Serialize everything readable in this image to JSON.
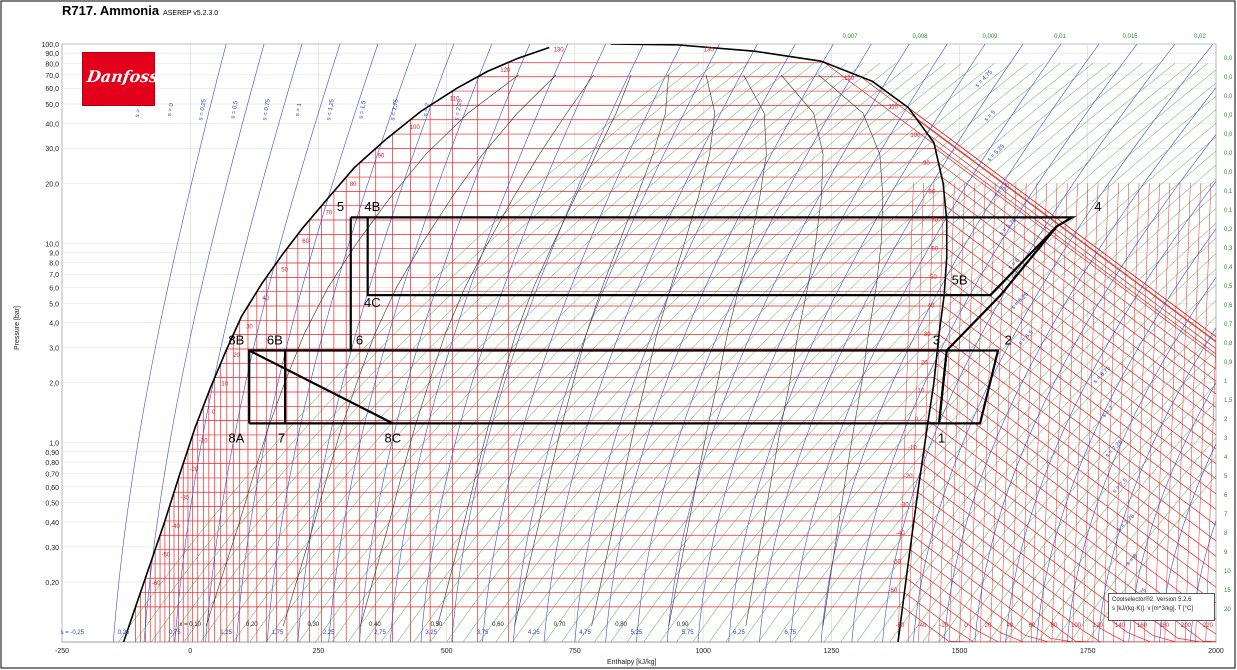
{
  "title": "R717. Ammonia",
  "version": "ASEREP v5.2.3.0",
  "logo_text": "Danfoss",
  "footer_box": {
    "line1": "Coolselector®2. Version 5.2.6",
    "line2": "s [kJ/(kg·K)]. v [m^3/kg]. T [°C]"
  },
  "chart_data": {
    "type": "line",
    "xlabel": "Enthalpy [kJ/kg]",
    "ylabel": "Pressure [bar]",
    "xlim": [
      -250,
      2000
    ],
    "ylim": [
      0.1,
      100
    ],
    "yscale": "log",
    "x_ticks": [
      -250,
      0,
      250,
      500,
      750,
      1000,
      1250,
      1500,
      1750,
      2000
    ],
    "y_ticks": [
      {
        "v": 100,
        "label": "100,0"
      },
      {
        "v": 90,
        "label": "90,0"
      },
      {
        "v": 80,
        "label": "80,0"
      },
      {
        "v": 70,
        "label": "70,0"
      },
      {
        "v": 60,
        "label": "60,0"
      },
      {
        "v": 50,
        "label": "50,0"
      },
      {
        "v": 40,
        "label": "40,0"
      },
      {
        "v": 30,
        "label": "30,0"
      },
      {
        "v": 20,
        "label": "20,0"
      },
      {
        "v": 10,
        "label": "10,0"
      },
      {
        "v": 9,
        "label": "9,0"
      },
      {
        "v": 8,
        "label": "8,0"
      },
      {
        "v": 7,
        "label": "7,0"
      },
      {
        "v": 6,
        "label": "6,0"
      },
      {
        "v": 5,
        "label": "5,0"
      },
      {
        "v": 4,
        "label": "4,0"
      },
      {
        "v": 3,
        "label": "3,0"
      },
      {
        "v": 2,
        "label": "2,0"
      },
      {
        "v": 1,
        "label": "1,0"
      },
      {
        "v": 0.9,
        "label": "0,90"
      },
      {
        "v": 0.8,
        "label": "0,80"
      },
      {
        "v": 0.7,
        "label": "0,70"
      },
      {
        "v": 0.6,
        "label": "0,60"
      },
      {
        "v": 0.5,
        "label": "0,50"
      },
      {
        "v": 0.4,
        "label": "0,40"
      },
      {
        "v": 0.3,
        "label": "0,30"
      },
      {
        "v": 0.2,
        "label": "0,20"
      }
    ],
    "temperature_scale_labels": [
      "-60",
      "-40",
      "-20",
      "0",
      "20",
      "40",
      "60",
      "80",
      "100",
      "120",
      "140",
      "160",
      "180",
      "200",
      "220"
    ],
    "right_volume_labels": [
      "0,0",
      "0,0",
      "0,0",
      "0,0",
      "0,0",
      "0,0",
      "0,0",
      "0,1",
      "0,1",
      "0,2",
      "0,3",
      "0,4",
      "0,5",
      "0,6",
      "0,7",
      "0,8",
      "0,9",
      "1",
      "1,5",
      "2",
      "3",
      "4",
      "5",
      "6",
      "7",
      "8",
      "9",
      "10",
      "15",
      "20"
    ],
    "top_volume_labels": [
      "0,007",
      "0,008",
      "0,009",
      "0,01",
      "0,015",
      "0,02"
    ],
    "bottom_entropy_labels": [
      "s = -0,25",
      "0,25",
      "0,75",
      "1,25",
      "1,75",
      "2,25",
      "2,75",
      "3,25",
      "3,75",
      "4,25",
      "4,75",
      "5,25",
      "5,75",
      "6,25",
      "6,75"
    ],
    "quality_labels": [
      "x = 0,10",
      "0,20",
      "0,30",
      "0,40",
      "0,50",
      "0,60",
      "0,70",
      "0,80",
      "0,90"
    ],
    "top_entropy_labels": [
      "s = -0",
      "s = 0",
      "s = 0,25",
      "s = 0,5",
      "s = 0,75",
      "s = 1",
      "s = 1,25",
      "s = 1,5",
      "s = 1,75",
      "s = 2",
      "s = 2,25"
    ],
    "right_entropy_labels": [
      "s = 4,75",
      "s = 5",
      "s = 5,25",
      "s = 5,5",
      "s = 5,75",
      "s = 6",
      "s = 6,25",
      "s = 6,5",
      "s = 6,75",
      "s = 7",
      "s = 7,25",
      "s = 7,5",
      "s = 7,75",
      "s = 8",
      "s = 8,25"
    ],
    "saturation_temperature_labels": [
      "-60",
      "-50",
      "-40",
      "-30",
      "-20",
      "-10",
      "0",
      "10",
      "20",
      "30",
      "40",
      "50",
      "60",
      "70",
      "80",
      "90",
      "100",
      "110",
      "120",
      "130"
    ],
    "vapor_side_temperature_labels": [
      "130",
      "120",
      "110",
      "100",
      "90",
      "80",
      "70",
      "60",
      "50",
      "40",
      "30",
      "20",
      "10",
      "0",
      "-10",
      "-20",
      "-30",
      "-40",
      "-50",
      "-60"
    ],
    "saturation_dome": {
      "liquid": [
        [
          -130,
          0.1
        ],
        [
          -90,
          0.2
        ],
        [
          -50,
          0.4
        ],
        [
          -20,
          0.7
        ],
        [
          10,
          1.2
        ],
        [
          40,
          1.9
        ],
        [
          70,
          2.9
        ],
        [
          100,
          4.3
        ],
        [
          140,
          6.3
        ],
        [
          180,
          8.8
        ],
        [
          220,
          12
        ],
        [
          270,
          17
        ],
        [
          320,
          24
        ],
        [
          380,
          33
        ],
        [
          450,
          46
        ],
        [
          520,
          60
        ],
        [
          580,
          73
        ],
        [
          640,
          85
        ],
        [
          700,
          96
        ]
      ],
      "vapor": [
        [
          1380,
          0.1
        ],
        [
          1400,
          0.25
        ],
        [
          1420,
          0.6
        ],
        [
          1437,
          1.2
        ],
        [
          1450,
          2.0
        ],
        [
          1460,
          3.5
        ],
        [
          1470,
          5.5
        ],
        [
          1475,
          8.5
        ],
        [
          1475,
          13
        ],
        [
          1468,
          20
        ],
        [
          1450,
          32
        ],
        [
          1400,
          48
        ],
        [
          1330,
          65
        ],
        [
          1230,
          82
        ],
        [
          1100,
          92
        ],
        [
          950,
          99
        ],
        [
          820,
          100
        ]
      ]
    },
    "cycle_lines": [
      {
        "name": "HP rectangle",
        "points": [
          [
            313,
            13.5
          ],
          [
            1720,
            13.5
          ],
          [
            1690,
            12.2
          ],
          [
            1560,
            5.5
          ],
          [
            346,
            5.5
          ],
          [
            346,
            13.5
          ]
        ]
      },
      {
        "name": "HP throttle",
        "points": [
          [
            313,
            13.5
          ],
          [
            313,
            2.9
          ]
        ]
      },
      {
        "name": "MP line",
        "points": [
          [
            185,
            2.9
          ],
          [
            1575,
            2.9
          ],
          [
            1540,
            1.25
          ],
          [
            1460,
            1.25
          ],
          [
            1475,
            2.9
          ]
        ]
      },
      {
        "name": "discharge 5B",
        "points": [
          [
            1475,
            2.9
          ],
          [
            1580,
            5.5
          ],
          [
            1690,
            12.2
          ]
        ]
      },
      {
        "name": "LP line",
        "points": [
          [
            115,
            1.25
          ],
          [
            1460,
            1.25
          ]
        ]
      },
      {
        "name": "throttle 8",
        "points": [
          [
            115,
            1.25
          ],
          [
            115,
            2.9
          ],
          [
            185,
            2.9
          ],
          [
            185,
            1.25
          ]
        ]
      },
      {
        "name": "line 8B-8C",
        "points": [
          [
            115,
            2.9
          ],
          [
            395,
            1.25
          ]
        ]
      },
      {
        "name": "1-3",
        "points": [
          [
            1460,
            1.25
          ],
          [
            1475,
            2.9
          ]
        ]
      }
    ],
    "point_labels": [
      {
        "label": "1",
        "x": 1465,
        "y": 1.0
      },
      {
        "label": "2",
        "x": 1595,
        "y": 3.1
      },
      {
        "label": "3",
        "x": 1455,
        "y": 3.1
      },
      {
        "label": "4",
        "x": 1770,
        "y": 14.5
      },
      {
        "label": "4B",
        "x": 355,
        "y": 14.5
      },
      {
        "label": "4C",
        "x": 355,
        "y": 4.8
      },
      {
        "label": "5",
        "x": 293,
        "y": 14.5
      },
      {
        "label": "5B",
        "x": 1500,
        "y": 6.2
      },
      {
        "label": "6",
        "x": 330,
        "y": 3.1
      },
      {
        "label": "6B",
        "x": 165,
        "y": 3.1
      },
      {
        "label": "7",
        "x": 178,
        "y": 1.0
      },
      {
        "label": "8A",
        "x": 90,
        "y": 1.0
      },
      {
        "label": "8B",
        "x": 90,
        "y": 3.1
      },
      {
        "label": "8C",
        "x": 395,
        "y": 1.0
      }
    ]
  }
}
